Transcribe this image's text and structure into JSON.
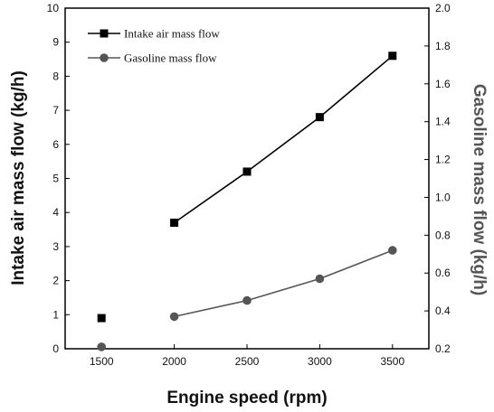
{
  "chart_data": {
    "type": "line",
    "xlabel": "Engine speed (rpm)",
    "ylabel_left": "Intake air mass flow (kg/h)",
    "ylabel_right": "Gasoline mass flow (kg/h)",
    "xlim": [
      1250,
      3750
    ],
    "ylim_left": [
      0,
      10
    ],
    "ylim_right": [
      0.2,
      2.0
    ],
    "x_ticks": [
      1500,
      2000,
      2500,
      3000,
      3500
    ],
    "y_left_ticks": [
      0,
      1,
      2,
      3,
      4,
      5,
      6,
      7,
      8,
      9,
      10
    ],
    "y_right_ticks": [
      "0.2",
      "0.4",
      "0.6",
      "0.8",
      "1.0",
      "1.2",
      "1.4",
      "1.6",
      "1.8",
      "2.0"
    ],
    "grid": false,
    "legend_position": "top-left",
    "series": [
      {
        "name": "Intake air mass flow",
        "axis": "left",
        "marker": "square",
        "color": "#000000",
        "x": [
          1500,
          2000,
          2500,
          3000,
          3500
        ],
        "y": [
          0.9,
          3.7,
          5.2,
          6.8,
          8.6
        ],
        "line_from_index": 1
      },
      {
        "name": "Gasoline mass flow",
        "axis": "right",
        "marker": "circle",
        "color": "#555555",
        "x": [
          1500,
          2000,
          2500,
          3000,
          3500
        ],
        "y": [
          0.21,
          0.37,
          0.455,
          0.57,
          0.72
        ],
        "line_from_index": 1
      }
    ]
  }
}
